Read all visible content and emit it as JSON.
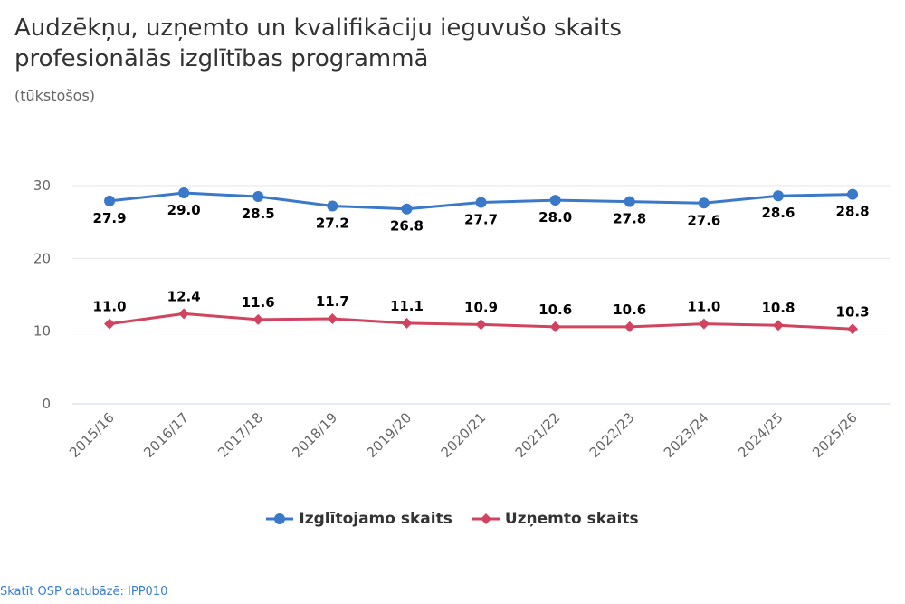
{
  "chart_data": {
    "type": "line",
    "title": "Audzēkņu, uzņemto un kvalifikāciju ieguvušo skaits profesionālās izglītības programmā",
    "subtitle": "(tūkstošos)",
    "categories": [
      "2015/16",
      "2016/17",
      "2017/18",
      "2018/19",
      "2019/20",
      "2020/21",
      "2021/22",
      "2022/23",
      "2023/24",
      "2024/25",
      "2025/26"
    ],
    "series": [
      {
        "name": "Izglītojamo skaits",
        "color": "#3a78c9",
        "marker": "circle",
        "label_position": "below",
        "values": [
          27.9,
          29.0,
          28.5,
          27.2,
          26.8,
          27.7,
          28.0,
          27.8,
          27.6,
          28.6,
          28.8
        ]
      },
      {
        "name": "Uzņemto skaits",
        "color": "#d0445f",
        "marker": "diamond",
        "label_position": "above",
        "values": [
          11.0,
          12.4,
          11.6,
          11.7,
          11.1,
          10.9,
          10.6,
          10.6,
          11.0,
          10.8,
          10.3
        ]
      }
    ],
    "ylim": [
      0,
      30
    ],
    "yticks": [
      0,
      10,
      20,
      30
    ],
    "xlabel": "",
    "ylabel": "",
    "grid": true,
    "legend": "bottom-center"
  },
  "credit": "Skatīt OSP datubāzē: IPP010"
}
